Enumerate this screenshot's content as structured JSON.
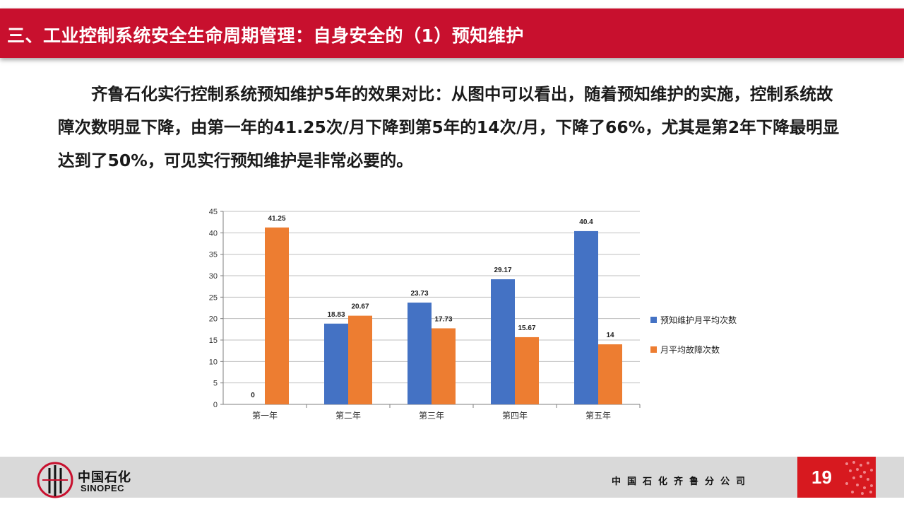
{
  "header": {
    "title": "三、工业控制系统安全生命周期管理：自身安全的（1）预知维护"
  },
  "body": {
    "paragraph": "齐鲁石化实行控制系统预知维护5年的效果对比：从图中可以看出，随着预知维护的实施，控制系统故障次数明显下降，由第一年的41.25次/月下降到第5年的14次/月，下降了66%，尤其是第2年下降最明显达到了50%，可见实行预知维护是非常必要的。"
  },
  "chart_data": {
    "type": "bar",
    "categories": [
      "第一年",
      "第二年",
      "第三年",
      "第四年",
      "第五年"
    ],
    "series": [
      {
        "name": "预知维护月平均次数",
        "values": [
          0,
          18.83,
          23.73,
          29.17,
          40.4
        ],
        "labels": [
          "0",
          "18.83",
          "23.73",
          "29.17",
          "40.4"
        ],
        "color": "#4472c4"
      },
      {
        "name": "月平均故障次数",
        "values": [
          41.25,
          20.67,
          17.73,
          15.67,
          14
        ],
        "labels": [
          "41.25",
          "20.67",
          "17.73",
          "15.67",
          "14"
        ],
        "color": "#ed7d31"
      }
    ],
    "ylim": [
      0,
      45
    ],
    "yticks": [
      0,
      5,
      10,
      15,
      20,
      25,
      30,
      35,
      40,
      45
    ],
    "grid": true,
    "legend": "right",
    "title": "",
    "xlabel": "",
    "ylabel": ""
  },
  "footer": {
    "logo_cn": "中国石化",
    "logo_en": "SINOPEC",
    "company": "中国石化齐鲁分公司",
    "page_number": "19"
  }
}
